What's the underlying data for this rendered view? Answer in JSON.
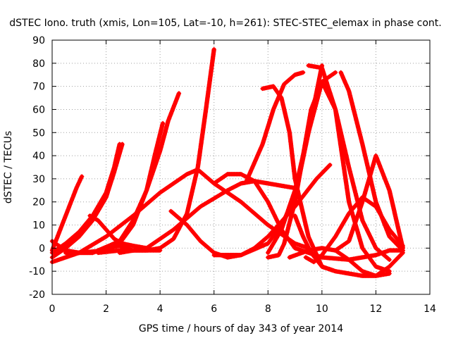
{
  "chart_data": {
    "type": "scatter",
    "title": "dSTEC Iono. truth (xmis, Lon=105, Lat=-10, h=261): STEC-STEC_elemax in phase cont.",
    "xlabel": "GPS time / hours of day 343 of year 2014",
    "ylabel": "dSTEC  / TECUs",
    "xlim": [
      0,
      14
    ],
    "ylim": [
      -20,
      90
    ],
    "xticks": [
      0,
      2,
      4,
      6,
      8,
      10,
      12,
      14
    ],
    "yticks": [
      -20,
      -10,
      0,
      10,
      20,
      30,
      40,
      50,
      60,
      70,
      80,
      90
    ],
    "xtick_labels": [
      "0",
      "2",
      "4",
      "6",
      "8",
      "10",
      "12",
      "14"
    ],
    "ytick_labels": [
      "-20",
      "-10",
      "0",
      "10",
      "20",
      "30",
      "40",
      "50",
      "60",
      "70",
      "80",
      "90"
    ],
    "grid": true,
    "marker": "+",
    "color": "#ff0000",
    "series": [
      {
        "x": [
          0.0,
          0.3,
          0.6,
          0.9,
          1.1
        ],
        "y": [
          -1,
          8,
          17,
          26,
          31
        ]
      },
      {
        "x": [
          0.0,
          0.5,
          1.0,
          1.5,
          2.0,
          2.3,
          2.5
        ],
        "y": [
          -2,
          2,
          7,
          14,
          24,
          35,
          45
        ]
      },
      {
        "x": [
          0.0,
          0.5,
          1.0,
          1.5,
          2.0,
          2.3,
          2.6
        ],
        "y": [
          -4,
          0,
          5,
          12,
          22,
          33,
          45
        ]
      },
      {
        "x": [
          0.0,
          0.5,
          1.0,
          1.5,
          2.0,
          2.5,
          3.0,
          3.5,
          4.0
        ],
        "y": [
          3,
          -1,
          -2,
          -2,
          0,
          1,
          -1,
          -1,
          -1
        ]
      },
      {
        "x": [
          0.5,
          1.5,
          2.5,
          3.0,
          3.5,
          4.0,
          4.3,
          4.7
        ],
        "y": [
          -2,
          -2,
          3,
          12,
          25,
          42,
          55,
          67
        ]
      },
      {
        "x": [
          1.0,
          2.0,
          2.5,
          3.0,
          3.5,
          3.8,
          4.1
        ],
        "y": [
          -2,
          -1,
          2,
          10,
          25,
          40,
          54
        ]
      },
      {
        "x": [
          1.4,
          1.7,
          2.0,
          2.3,
          2.6,
          3.0,
          3.5
        ],
        "y": [
          14,
          12,
          8,
          4,
          2,
          1,
          0
        ]
      },
      {
        "x": [
          1.7,
          2.5,
          3.5,
          4.0,
          4.5,
          5.0,
          5.4,
          5.7,
          6.0
        ],
        "y": [
          -2,
          -1,
          -1,
          0,
          4,
          15,
          35,
          60,
          86
        ]
      },
      {
        "x": [
          0.0,
          1.0,
          2.0,
          3.0,
          4.0,
          5.0,
          5.4,
          6.0,
          7.0,
          8.0,
          9.0,
          9.5
        ],
        "y": [
          -6,
          -2,
          5,
          14,
          24,
          32,
          34,
          28,
          20,
          10,
          2,
          0
        ]
      },
      {
        "x": [
          2.5,
          3.5,
          4.5,
          5.5,
          6.5,
          7.0,
          7.5,
          8.0,
          8.5,
          9.0
        ],
        "y": [
          -2,
          0,
          8,
          18,
          25,
          28,
          29,
          28,
          27,
          26
        ]
      },
      {
        "x": [
          4.4,
          5.0,
          5.5,
          6.0,
          6.5,
          7.0,
          7.5,
          8.0,
          9.0,
          9.8,
          10.3
        ],
        "y": [
          16,
          10,
          3,
          -2,
          -4,
          -3,
          0,
          5,
          18,
          30,
          36
        ]
      },
      {
        "x": [
          6.0,
          6.5,
          7.0,
          7.5,
          8.0,
          8.5,
          9.0,
          10.0,
          11.0,
          12.0,
          12.5,
          13.0
        ],
        "y": [
          28,
          32,
          32,
          29,
          20,
          8,
          0,
          -4,
          -5,
          -3,
          -1,
          -1
        ]
      },
      {
        "x": [
          6.0,
          7.0,
          8.0,
          8.5,
          9.0,
          9.5,
          10.0
        ],
        "y": [
          -3,
          -3,
          2,
          10,
          22,
          50,
          79
        ]
      },
      {
        "x": [
          7.8,
          8.2,
          8.5,
          8.8,
          9.0,
          9.5,
          10.0,
          10.5
        ],
        "y": [
          69,
          70,
          65,
          50,
          30,
          5,
          -8,
          -10
        ]
      },
      {
        "x": [
          8.0,
          8.4,
          8.6,
          9.0,
          9.3,
          9.6,
          10.0,
          10.5
        ],
        "y": [
          -4,
          -3,
          2,
          20,
          40,
          60,
          72,
          76
        ]
      },
      {
        "x": [
          7.2,
          7.8,
          8.2,
          8.6,
          9.0,
          9.3
        ],
        "y": [
          29,
          45,
          60,
          71,
          75,
          76
        ]
      },
      {
        "x": [
          8.0,
          8.5,
          9.0,
          9.5,
          10.0,
          10.5,
          11.0,
          11.5,
          12.0,
          12.5
        ],
        "y": [
          -2,
          8,
          25,
          50,
          72,
          60,
          20,
          0,
          -8,
          -10
        ]
      },
      {
        "x": [
          9.5,
          10.0,
          10.5,
          11.0,
          11.5,
          12.0,
          12.5
        ],
        "y": [
          79,
          78,
          60,
          35,
          12,
          0,
          -5
        ]
      },
      {
        "x": [
          10.7,
          11.0,
          11.5,
          12.0,
          12.5,
          13.0
        ],
        "y": [
          76,
          68,
          45,
          20,
          5,
          -1
        ]
      },
      {
        "x": [
          9.4,
          9.7,
          10.0,
          10.5,
          11.0,
          11.5,
          12.0,
          12.5,
          13.0
        ],
        "y": [
          -4,
          -6,
          -3,
          5,
          15,
          22,
          18,
          8,
          1
        ]
      },
      {
        "x": [
          10.5,
          11.0,
          11.5,
          12.0,
          12.5,
          13.0
        ],
        "y": [
          -1,
          3,
          20,
          40,
          25,
          0
        ]
      },
      {
        "x": [
          9.0,
          9.3,
          9.6,
          10.0,
          10.5,
          11.0,
          11.5,
          12.0,
          12.5,
          13.0
        ],
        "y": [
          14,
          5,
          -2,
          -8,
          -10,
          -11,
          -12,
          -12,
          -8,
          -2
        ]
      },
      {
        "x": [
          8.8,
          9.5,
          10.0,
          10.5,
          11.0,
          11.5,
          12.0,
          12.5
        ],
        "y": [
          -4,
          -1,
          0,
          -1,
          -5,
          -10,
          -12,
          -11
        ]
      }
    ]
  }
}
